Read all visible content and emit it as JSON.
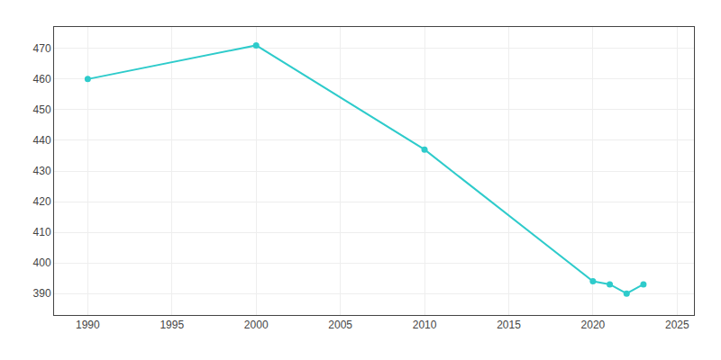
{
  "chart_data": {
    "type": "line",
    "x": [
      1990,
      2000,
      2010,
      2020,
      2021,
      2022,
      2023
    ],
    "values": [
      460,
      471,
      437,
      394,
      393,
      390,
      393
    ],
    "color": "#2ECBCB",
    "marker": "circle",
    "line_style": "solid",
    "xlim": [
      1988,
      2026
    ],
    "ylim": [
      383,
      477
    ],
    "xticks": [
      1990,
      1995,
      2000,
      2005,
      2010,
      2015,
      2020,
      2025
    ],
    "yticks": [
      390,
      400,
      410,
      420,
      430,
      440,
      450,
      460,
      470
    ],
    "grid": true
  }
}
